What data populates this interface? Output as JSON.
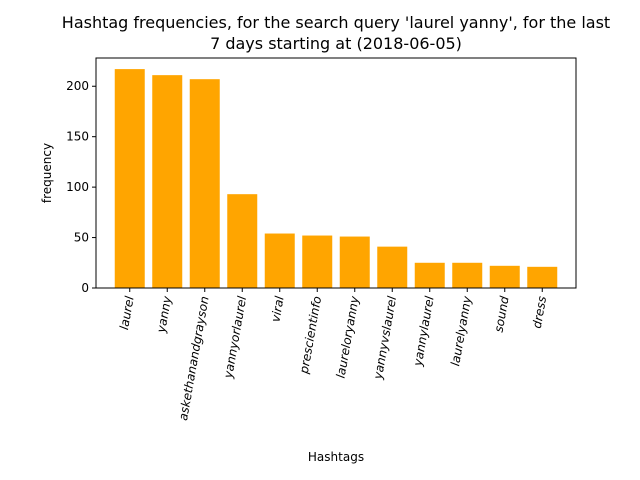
{
  "chart_data": {
    "type": "bar",
    "title_lines": [
      "Hashtag frequencies, for the search query 'laurel yanny', for the last",
      "7 days starting at (2018-06-05)"
    ],
    "xlabel": "Hashtags",
    "ylabel": "frequency",
    "categories": [
      "laurel",
      "yanny",
      "askethanandgrayson",
      "yannyorlaurel",
      "viral",
      "prescientinfo",
      "laureloryanny",
      "yannyvslaurel",
      "yannylaurel",
      "laurelyanny",
      "sound",
      "dress"
    ],
    "values": [
      217,
      211,
      207,
      93,
      54,
      52,
      51,
      41,
      25,
      25,
      22,
      21
    ],
    "ylim": [
      0,
      228
    ],
    "yticks": [
      0,
      50,
      100,
      150,
      200
    ],
    "bar_color": "#ffa500",
    "grid": false
  }
}
